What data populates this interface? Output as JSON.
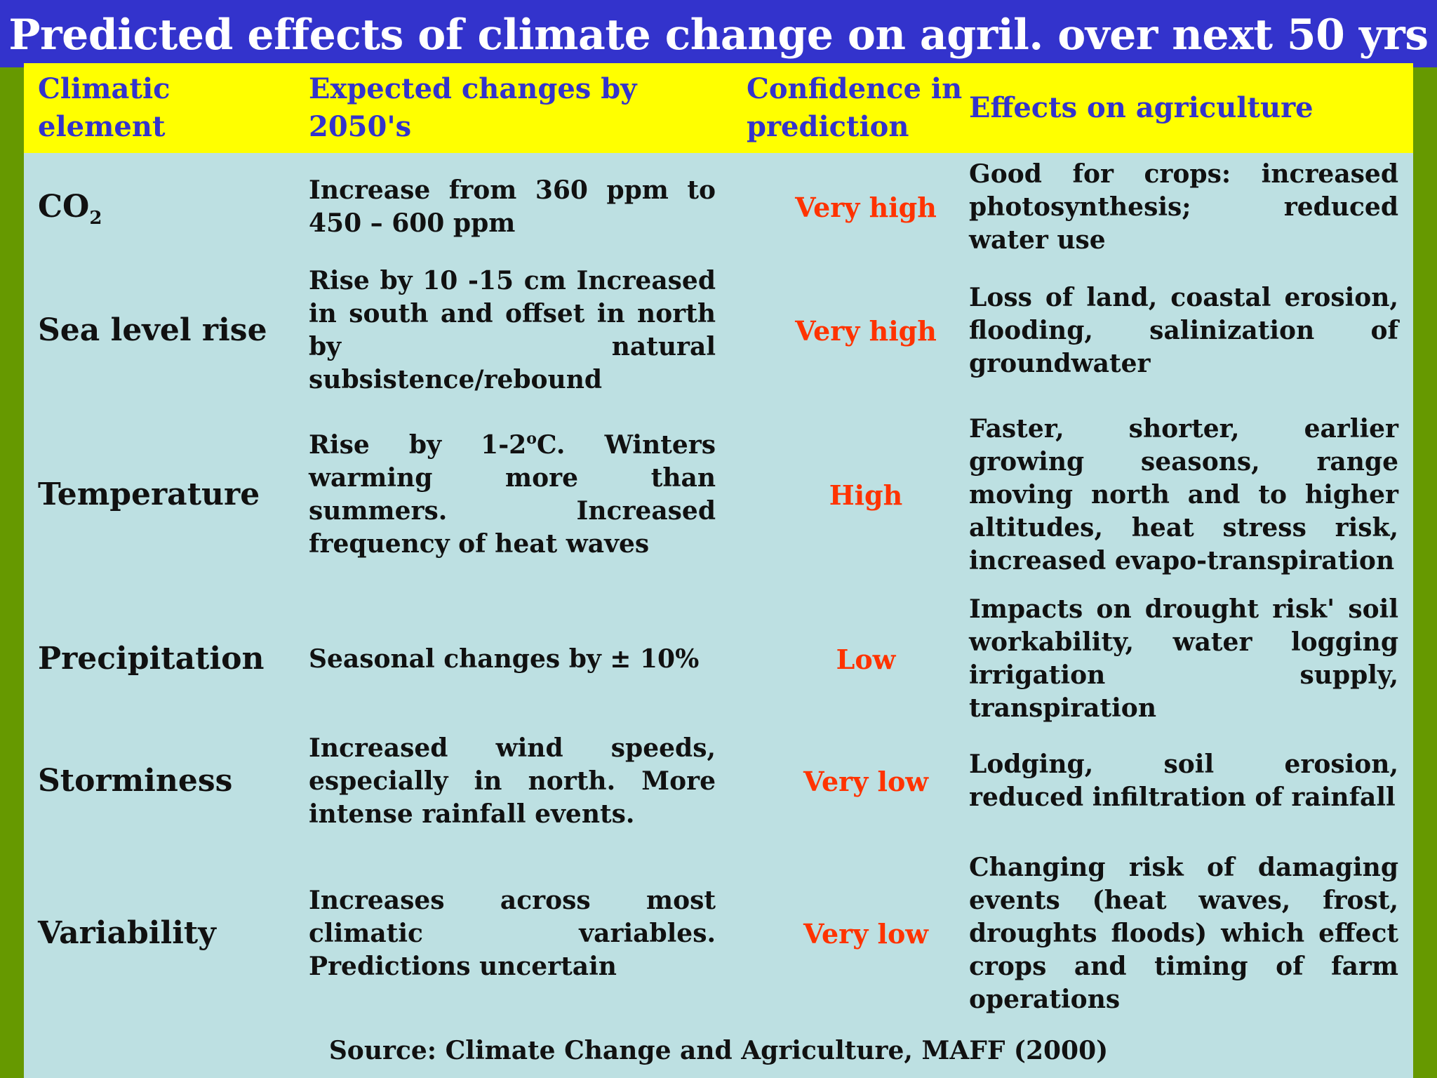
{
  "title": "Predicted effects of climate change on agril. over next 50 yrs",
  "headers": {
    "climatic_element": "Climatic element",
    "expected_changes": "Expected changes by 2050's",
    "confidence": "Confidence in prediction",
    "effects": "Effects on agriculture"
  },
  "rows": [
    {
      "element_main": "CO",
      "element_sub": "2",
      "changes": "Increase from 360 ppm to 450 – 600 ppm",
      "confidence": "Very high",
      "effects": "Good for crops: increased photosynthesis; reduced water use"
    },
    {
      "element": "Sea level rise",
      "changes": "Rise by 10 -15 cm Increased in south and offset in north by natural subsistence/rebound",
      "confidence": "Very high",
      "effects": "Loss of land, coastal erosion, flooding, salinization of groundwater"
    },
    {
      "element": "Temperature",
      "changes_before": "Rise by 1-2",
      "changes_sup": "o",
      "changes_after": "C. Winters warming more than summers. Increased frequency of heat waves",
      "confidence": "High",
      "effects": "Faster, shorter, earlier growing seasons, range moving north and to higher altitudes, heat stress risk, increased evapo-transpiration"
    },
    {
      "element": "Precipitation",
      "changes": "Seasonal changes by ± 10%",
      "confidence": "Low",
      "effects": "Impacts on drought risk' soil workability, water logging irrigation supply, transpiration"
    },
    {
      "element": "Storminess",
      "changes": "Increased wind speeds, especially in north. More intense rainfall events.",
      "confidence": "Very low",
      "effects": "Lodging, soil erosion, reduced infiltration of rainfall"
    },
    {
      "element": "Variability",
      "changes": "Increases across most climatic variables. Predictions uncertain",
      "confidence": "Very low",
      "effects": "Changing risk of damaging events (heat waves, frost, droughts floods) which effect crops and timing of farm operations"
    }
  ],
  "source": "Source: Climate Change and Agriculture, MAFF (2000)",
  "colors": {
    "background": "#669900",
    "title_bar": "#3333cc",
    "header_bg": "#ffff00",
    "header_text": "#3333cc",
    "table_bg": "#bde0e2",
    "confidence_text": "#ff3300"
  }
}
